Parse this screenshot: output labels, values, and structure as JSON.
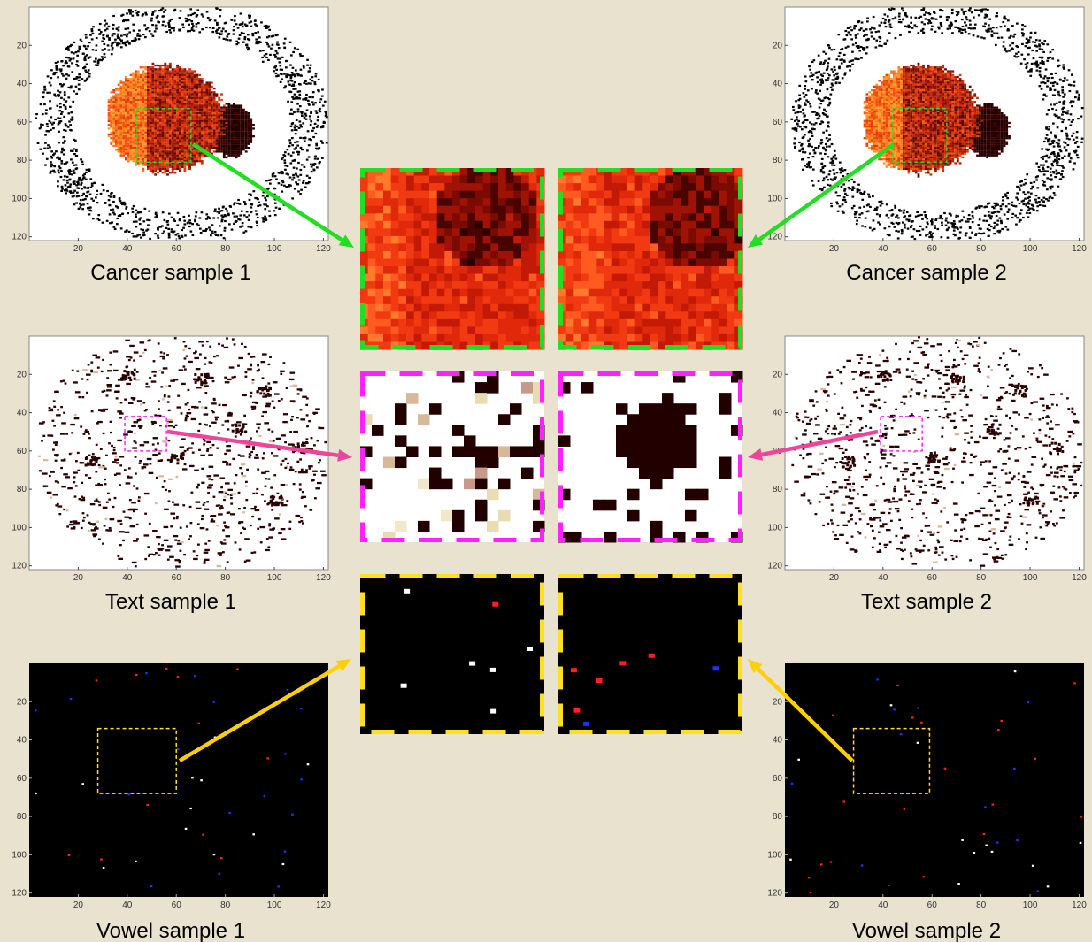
{
  "panels": [
    {
      "key": "cancer1",
      "caption": "Cancer sample 1",
      "theme": "cancer",
      "seed": 11
    },
    {
      "key": "cancer2",
      "caption": "Cancer sample 2",
      "theme": "cancer",
      "seed": 12
    },
    {
      "key": "text1",
      "caption": "Text sample 1",
      "theme": "text",
      "seed": 21
    },
    {
      "key": "text2",
      "caption": "Text sample 2",
      "theme": "text",
      "seed": 22
    },
    {
      "key": "vowel1",
      "caption": "Vowel sample 1",
      "theme": "vowel",
      "seed": 31
    },
    {
      "key": "vowel2",
      "caption": "Vowel sample 2",
      "theme": "vowel",
      "seed": 32
    }
  ],
  "axis_ticks": {
    "x": [
      "20",
      "40",
      "60",
      "80",
      "100",
      "120"
    ],
    "y": [
      "20",
      "40",
      "60",
      "80",
      "100",
      "120"
    ]
  },
  "zoom_boxes": [
    {
      "key": "cancer-zoom-1",
      "theme": "cancer",
      "border_color": "#22dd22"
    },
    {
      "key": "cancer-zoom-2",
      "theme": "cancer",
      "border_color": "#22dd22"
    },
    {
      "key": "text-zoom-1",
      "theme": "text",
      "border_color": "#ff22ff"
    },
    {
      "key": "text-zoom-2",
      "theme": "text",
      "border_color": "#ff22ff"
    },
    {
      "key": "vowel-zoom-1",
      "theme": "vowel",
      "border_color": "#ffe020"
    },
    {
      "key": "vowel-zoom-2",
      "theme": "vowel",
      "border_color": "#ffe020"
    }
  ],
  "colors": {
    "background": "#e8e2cf",
    "cancer_arrow": "#22dd22",
    "text_arrow": "#ee4499",
    "vowel_arrow": "#ffd000",
    "text_region": "#ff22ff",
    "vowel_region": "#ffe020"
  }
}
